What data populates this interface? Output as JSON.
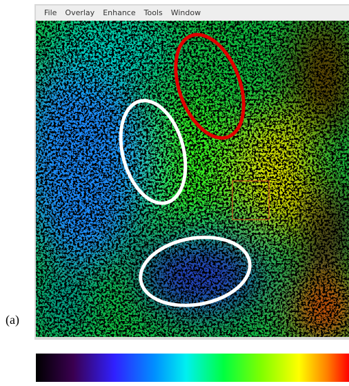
{
  "menu": [
    "File",
    "Overlay",
    "Enhance",
    "Tools",
    "Window"
  ],
  "panel_label": "(a)"
}
